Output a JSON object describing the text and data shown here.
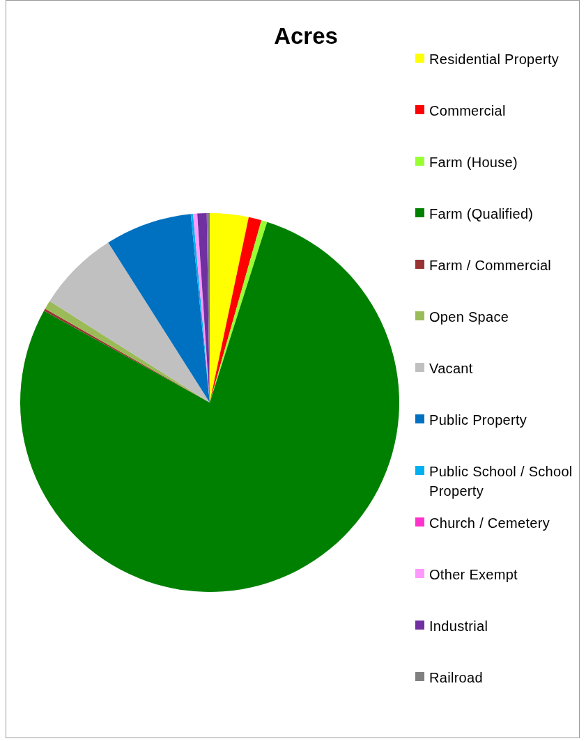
{
  "chart_data": {
    "type": "pie",
    "title": "Acres",
    "categories": [
      "Residential Property",
      "Commercial",
      "Farm (House)",
      "Farm (Qualified)",
      "Farm / Commercial",
      "Open Space",
      "Vacant",
      "Public Property",
      "Public School / School Property",
      "Church / Cemetery",
      "Other Exempt",
      "Industrial",
      "Railroad"
    ],
    "values": [
      3.3,
      1.1,
      0.5,
      78.15,
      0.2,
      0.75,
      7.0,
      7.4,
      0.2,
      0,
      0.35,
      0.8,
      0.25
    ],
    "colors": [
      "#ffff00",
      "#ff0000",
      "#99ff33",
      "#008000",
      "#993333",
      "#9bbb59",
      "#c0c0c0",
      "#0070c0",
      "#00b0f0",
      "#ff33cc",
      "#ff99ff",
      "#7030a0",
      "#808080"
    ],
    "legend": "right"
  }
}
